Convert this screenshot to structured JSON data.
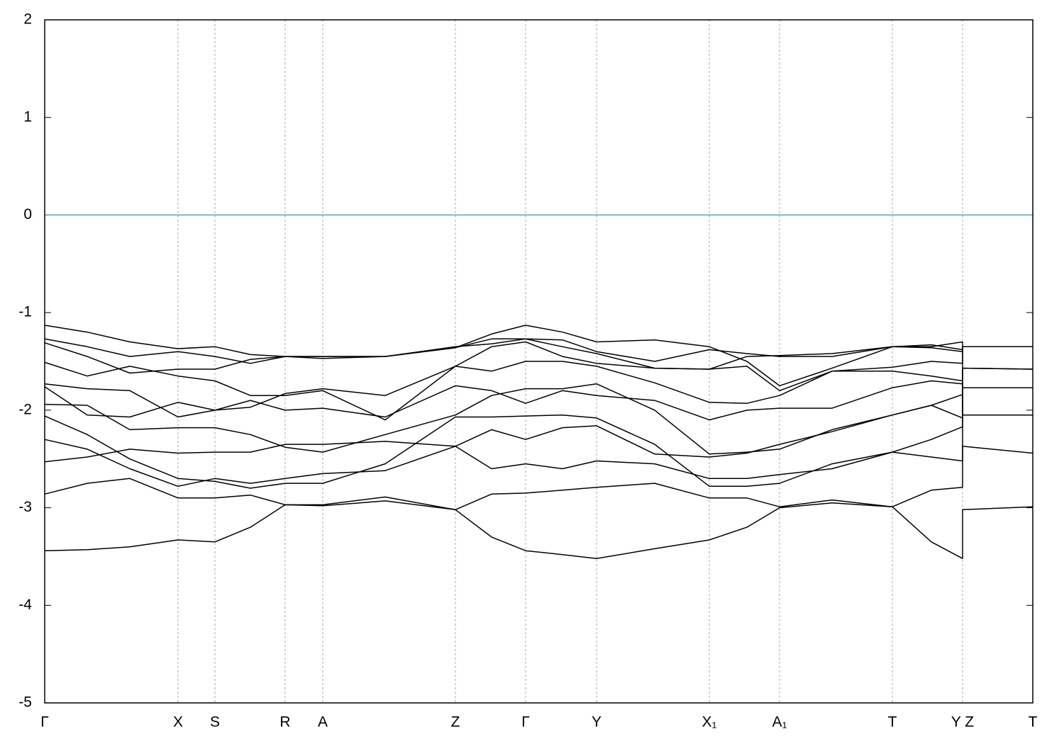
{
  "chart_data": {
    "type": "line",
    "x": [
      0,
      60,
      120,
      188,
      240,
      290,
      339,
      392,
      480,
      579,
      630,
      678,
      730,
      778,
      860,
      937,
      990,
      1036,
      1110,
      1195,
      1250,
      1294,
      1294,
      1393
    ],
    "xlim": [
      0,
      1393
    ],
    "xticks": [
      {
        "value": 0,
        "label": "Γ"
      },
      {
        "value": 188,
        "label": "X"
      },
      {
        "value": 240,
        "label": "S"
      },
      {
        "value": 339,
        "label": "R"
      },
      {
        "value": 392,
        "label": "A"
      },
      {
        "value": 579,
        "label": "Z"
      },
      {
        "value": 678,
        "label": "Γ"
      },
      {
        "value": 778,
        "label": "Y"
      },
      {
        "value": 937,
        "label": "X₁"
      },
      {
        "value": 1036,
        "label": "A₁"
      },
      {
        "value": 1195,
        "label": "T"
      },
      {
        "value": 1294,
        "label": "Y Z"
      },
      {
        "value": 1393,
        "label": "T"
      }
    ],
    "ylim": [
      -5,
      2
    ],
    "yticks": [
      -5,
      -4,
      -3,
      -2,
      -1,
      0,
      1,
      2
    ],
    "grid": true,
    "line_color": "#000000",
    "hline": {
      "value": 0,
      "color": "#4aa6c8"
    },
    "series": [
      {
        "values": [
          -3.44,
          -3.43,
          -3.4,
          -3.33,
          -3.35,
          -3.2,
          -2.97,
          -2.98,
          -2.93,
          -3.02,
          -3.3,
          -3.44,
          -3.48,
          -3.52,
          -3.42,
          -3.33,
          -3.2,
          -3.0,
          -2.95,
          -2.99,
          -3.35,
          -3.52,
          -3.02,
          -2.99
        ]
      },
      {
        "values": [
          -2.86,
          -2.75,
          -2.7,
          -2.9,
          -2.9,
          -2.87,
          -2.97,
          -2.97,
          -2.89,
          -3.02,
          -2.86,
          -2.85,
          -2.82,
          -2.79,
          -2.75,
          -2.9,
          -2.9,
          -2.99,
          -2.92,
          -2.99,
          -2.82,
          -2.79,
          -2.37,
          -2.44
        ]
      },
      {
        "values": [
          -2.53,
          -2.48,
          -2.4,
          -2.44,
          -2.43,
          -2.43,
          -2.35,
          -2.35,
          -2.32,
          -2.37,
          -2.2,
          -2.3,
          -2.18,
          -2.16,
          -2.45,
          -2.48,
          -2.44,
          -2.35,
          -2.22,
          -2.05,
          -1.95,
          -1.84,
          -2.05,
          -2.05
        ]
      },
      {
        "values": [
          -2.3,
          -2.4,
          -2.6,
          -2.78,
          -2.7,
          -2.75,
          -2.7,
          -2.65,
          -2.62,
          -2.37,
          -2.6,
          -2.55,
          -2.6,
          -2.52,
          -2.55,
          -2.7,
          -2.7,
          -2.66,
          -2.6,
          -2.43,
          -2.48,
          -2.52,
          -1.77,
          -1.77
        ]
      },
      {
        "values": [
          -2.06,
          -2.25,
          -2.5,
          -2.7,
          -2.73,
          -2.8,
          -2.75,
          -2.75,
          -2.55,
          -2.07,
          -2.07,
          -2.06,
          -2.05,
          -2.08,
          -2.35,
          -2.78,
          -2.78,
          -2.75,
          -2.55,
          -2.43,
          -2.3,
          -2.17,
          -1.57,
          -1.58
        ]
      },
      {
        "values": [
          -1.94,
          -1.95,
          -2.2,
          -2.18,
          -2.18,
          -2.25,
          -2.38,
          -2.43,
          -2.25,
          -2.05,
          -1.85,
          -1.78,
          -1.78,
          -1.73,
          -2.0,
          -2.45,
          -2.43,
          -2.4,
          -2.2,
          -2.05,
          -1.95,
          -2.08,
          -1.35,
          -1.35
        ]
      },
      {
        "values": [
          -1.76,
          -2.05,
          -2.07,
          -1.92,
          -2.0,
          -1.9,
          -2.0,
          -1.98,
          -2.07,
          -1.75,
          -1.8,
          -1.93,
          -1.8,
          -1.85,
          -1.9,
          -2.1,
          -2.0,
          -1.98,
          -1.98,
          -1.77,
          -1.7,
          -1.73,
          -1.77,
          -1.77
        ]
      },
      {
        "values": [
          -1.73,
          -1.78,
          -1.8,
          -2.07,
          -2.0,
          -1.97,
          -1.83,
          -1.78,
          -1.85,
          -1.55,
          -1.6,
          -1.5,
          -1.5,
          -1.55,
          -1.72,
          -1.92,
          -1.93,
          -1.85,
          -1.6,
          -1.6,
          -1.65,
          -1.7,
          -1.57,
          -1.58
        ]
      },
      {
        "values": [
          -1.51,
          -1.65,
          -1.55,
          -1.65,
          -1.7,
          -1.85,
          -1.85,
          -1.8,
          -2.1,
          -1.55,
          -1.35,
          -1.3,
          -1.45,
          -1.52,
          -1.57,
          -1.58,
          -1.55,
          -1.8,
          -1.6,
          -1.56,
          -1.5,
          -1.52,
          -1.35,
          -1.35
        ]
      },
      {
        "values": [
          -1.31,
          -1.45,
          -1.62,
          -1.58,
          -1.58,
          -1.48,
          -1.45,
          -1.45,
          -1.45,
          -1.36,
          -1.27,
          -1.27,
          -1.35,
          -1.42,
          -1.57,
          -1.58,
          -1.45,
          -1.44,
          -1.42,
          -1.35,
          -1.36,
          -1.4,
          -1.35,
          -1.35
        ]
      },
      {
        "values": [
          -1.27,
          -1.35,
          -1.45,
          -1.4,
          -1.45,
          -1.52,
          -1.45,
          -1.47,
          -1.45,
          -1.36,
          -1.22,
          -1.13,
          -1.2,
          -1.3,
          -1.28,
          -1.35,
          -1.5,
          -1.75,
          -1.57,
          -1.35,
          -1.35,
          -1.3,
          -1.35,
          -1.35
        ]
      },
      {
        "values": [
          -1.13,
          -1.2,
          -1.3,
          -1.37,
          -1.35,
          -1.43,
          -1.45,
          -1.45,
          -1.45,
          -1.35,
          -1.32,
          -1.27,
          -1.28,
          -1.4,
          -1.5,
          -1.38,
          -1.42,
          -1.45,
          -1.45,
          -1.35,
          -1.33,
          -1.38,
          -1.35,
          -1.35
        ]
      }
    ]
  }
}
